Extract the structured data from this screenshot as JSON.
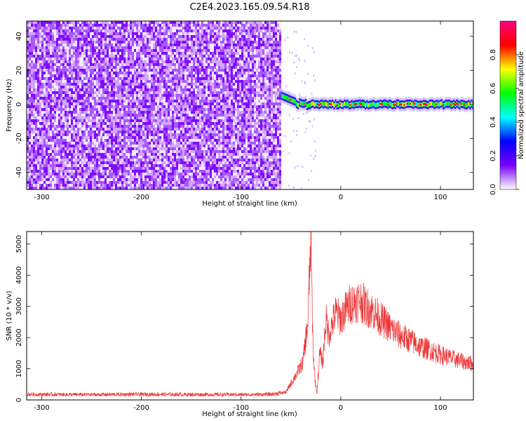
{
  "title": "C2E4.2023.165.09.54.R18",
  "chart_data": [
    {
      "type": "heatmap",
      "xlabel": "Height of straight line (km)",
      "ylabel": "Frequency (Hz)",
      "xlim": [
        -315,
        133
      ],
      "ylim": [
        -50,
        49
      ],
      "xticks": [
        -300,
        -200,
        -100,
        0,
        100
      ],
      "yticks": [
        -40,
        -20,
        0,
        20,
        40
      ],
      "noise_region_x": [
        -315,
        -60
      ],
      "signal_line_frequency": 0,
      "colorbar": {
        "label": "Normalized spectral amplitude",
        "ticks": [
          "0.0",
          "0.2",
          "0.4",
          "0.6",
          "0.8"
        ],
        "range": [
          0,
          1
        ],
        "colormap": [
          "#ffffff",
          "#7a00ff",
          "#0000ff",
          "#00ffff",
          "#00ff00",
          "#ffff00",
          "#ff0000",
          "#ff0080"
        ]
      }
    },
    {
      "type": "line",
      "xlabel": "Height of straight line (km)",
      "ylabel": "SNR (10 * v/v)",
      "xlim": [
        -315,
        133
      ],
      "ylim": [
        0,
        5400
      ],
      "xticks": [
        -300,
        -200,
        -100,
        0,
        100
      ],
      "yticks": [
        0,
        1000,
        2000,
        3000,
        4000,
        5000
      ],
      "color": "#ee3333",
      "series": [
        {
          "x": [
            -315,
            -250,
            -200,
            -150,
            -100,
            -70,
            -55,
            -45,
            -38,
            -33,
            -30,
            -28,
            -26,
            -24,
            -21,
            -18,
            -15,
            -12,
            -9,
            -5,
            0,
            5,
            10,
            15,
            20,
            25,
            30,
            40,
            50,
            60,
            70,
            80,
            90,
            100,
            110,
            120,
            133
          ],
          "y": [
            180,
            170,
            180,
            175,
            170,
            180,
            250,
            800,
            1200,
            2500,
            5200,
            1800,
            700,
            200,
            1500,
            1200,
            2600,
            2100,
            2400,
            2800,
            2600,
            2900,
            3100,
            3150,
            3200,
            3000,
            2900,
            2600,
            2300,
            2050,
            1900,
            1700,
            1600,
            1450,
            1350,
            1250,
            1150
          ]
        }
      ]
    }
  ]
}
